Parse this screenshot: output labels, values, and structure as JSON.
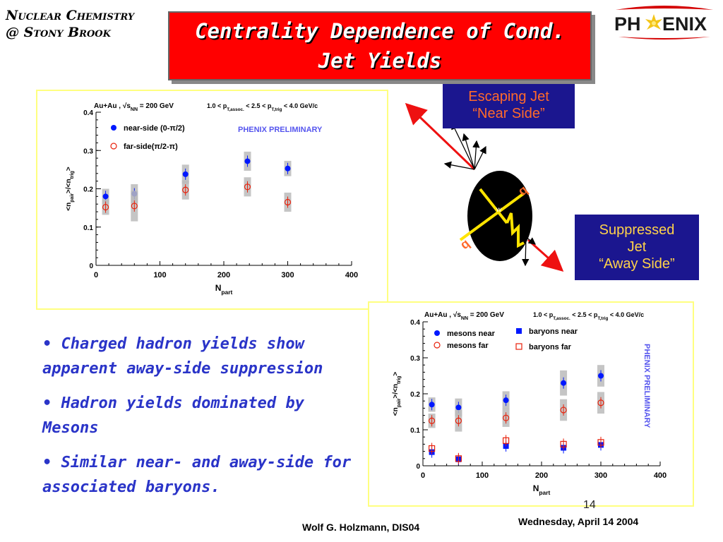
{
  "header": {
    "line1": "Nuclear Chemistry",
    "line2": "@ Stony Brook"
  },
  "title": {
    "line1": "Centrality Dependence of Cond.",
    "line2": "Jet Yields"
  },
  "logo": {
    "text_left": "PH",
    "text_right": "ENIX"
  },
  "diagram": {
    "escaping_label": {
      "line1": "Escaping Jet",
      "line2": "“Near Side”"
    },
    "suppressed_label": {
      "line1": "Suppressed",
      "line2": "Jet",
      "line3": "“Away Side”"
    }
  },
  "bullets": [
    "• Charged hadron yields show apparent away-side suppression",
    "• Hadron yields dominated by Mesons",
    "• Similar near- and away-side for associated baryons."
  ],
  "footer": {
    "slide_number": "14",
    "author": "Wolf G. Holzmann, DIS04",
    "date": "Wednesday, April 14 2004"
  },
  "colors": {
    "title_bg": "#ff0000",
    "bullet_text": "#2a34c8",
    "label_bg": "#1b168f",
    "escaping_text": "#ff6a2a",
    "suppressed_text": "#ffd24a",
    "near_marker": "#0018ff",
    "far_marker": "#e8200a",
    "preliminary": "#5555ee"
  },
  "chart_data": [
    {
      "type": "scatter",
      "title_left": "Au+Au , √s_NN = 200 GeV",
      "title_right": "1.0 < p_T,assoc. < 2.5 < p_T,trig < 4.0 GeV/c",
      "xlabel": "N_part",
      "ylabel": "<n_pair>/<n_trig>",
      "xlim": [
        0,
        400
      ],
      "ylim": [
        0,
        0.4
      ],
      "xticks": [
        "0",
        "100",
        "200",
        "300",
        "400"
      ],
      "yticks": [
        "0",
        "0.1",
        "0.2",
        "0.3",
        "0.4"
      ],
      "watermark": "PHENIX PRELIMINARY",
      "series": [
        {
          "name": "near-side (0-π/2)",
          "marker": "filled-circle",
          "x": [
            15,
            60,
            140,
            237,
            300
          ],
          "y": [
            0.18,
            0.187,
            0.238,
            0.272,
            0.253
          ],
          "band": [
            0.02,
            0.025,
            0.025,
            0.025,
            0.02
          ]
        },
        {
          "name": "far-side(π/2-π)",
          "marker": "open-circle",
          "x": [
            15,
            60,
            140,
            237,
            300
          ],
          "y": [
            0.152,
            0.155,
            0.197,
            0.205,
            0.165
          ],
          "band": [
            0.02,
            0.04,
            0.025,
            0.025,
            0.025
          ]
        }
      ]
    },
    {
      "type": "scatter",
      "title_left": "Au+Au , √s_NN = 200 GeV",
      "title_right": "1.0 < p_T,assoc. < 2.5 < p_T,trig < 4.0 GeV/c",
      "xlabel": "N_part",
      "ylabel": "<n_pair>/<n_trig>",
      "xlim": [
        0,
        400
      ],
      "ylim": [
        0,
        0.4
      ],
      "xticks": [
        "0",
        "100",
        "200",
        "300",
        "400"
      ],
      "yticks": [
        "0",
        "0.1",
        "0.2",
        "0.3",
        "0.4"
      ],
      "watermark": "PHENIX PRELIMINARY",
      "series": [
        {
          "name": "mesons near",
          "marker": "filled-circle",
          "x": [
            15,
            60,
            140,
            237,
            300
          ],
          "y": [
            0.17,
            0.162,
            0.182,
            0.23,
            0.25
          ],
          "band": [
            0.02,
            0.025,
            0.025,
            0.035,
            0.03
          ]
        },
        {
          "name": "mesons far",
          "marker": "open-circle",
          "x": [
            15,
            60,
            140,
            237,
            300
          ],
          "y": [
            0.125,
            0.125,
            0.133,
            0.155,
            0.175
          ],
          "band": [
            0.02,
            0.03,
            0.025,
            0.03,
            0.03
          ]
        },
        {
          "name": "baryons near",
          "marker": "filled-square",
          "x": [
            15,
            60,
            140,
            237,
            300
          ],
          "y": [
            0.038,
            0.018,
            0.055,
            0.05,
            0.058
          ],
          "band": [
            0.005,
            0.005,
            0.005,
            0.005,
            0.005
          ]
        },
        {
          "name": "baryons far",
          "marker": "open-square",
          "x": [
            15,
            60,
            140,
            237,
            300
          ],
          "y": [
            0.048,
            0.02,
            0.07,
            0.06,
            0.065
          ],
          "band": [
            0.005,
            0.005,
            0.005,
            0.005,
            0.005
          ]
        }
      ]
    }
  ]
}
